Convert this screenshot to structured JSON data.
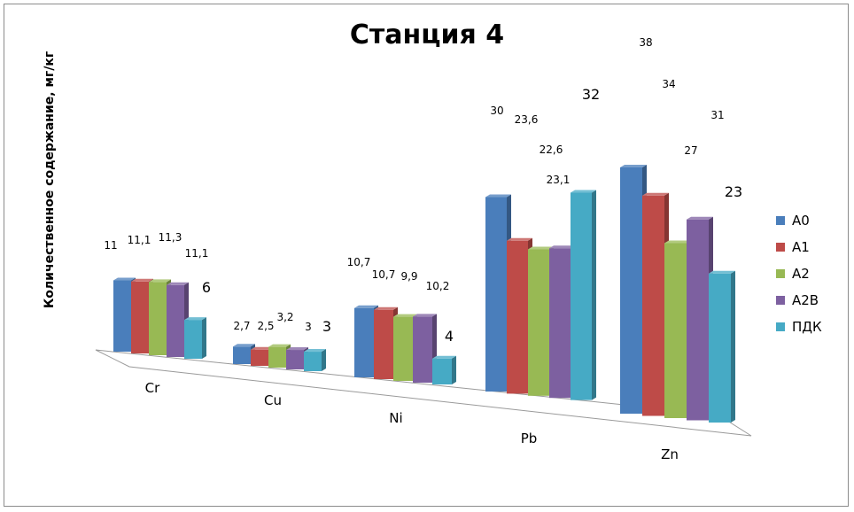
{
  "chart_data": {
    "type": "bar",
    "title": "Станция 4",
    "ylabel": "Количественное содержание, мг/кг",
    "xlabel": "",
    "categories": [
      "Cr",
      "Cu",
      "Ni",
      "Pb",
      "Zn"
    ],
    "series": [
      {
        "name": "A0",
        "color": "#4A7EBB",
        "values": [
          11,
          2.7,
          10.7,
          30,
          38
        ],
        "labels": [
          "11",
          "2,7",
          "10,7",
          "30",
          "38"
        ]
      },
      {
        "name": "A1",
        "color": "#BE4B48",
        "values": [
          11.1,
          2.5,
          10.7,
          23.6,
          34
        ],
        "labels": [
          "11,1",
          "2,5",
          "10,7",
          "23,6",
          "34"
        ]
      },
      {
        "name": "A2",
        "color": "#98B954",
        "values": [
          11.3,
          3.2,
          9.9,
          22.6,
          27
        ],
        "labels": [
          "11,3",
          "3,2",
          "9,9",
          "22,6",
          "27"
        ]
      },
      {
        "name": "A2B",
        "color": "#7D60A0",
        "values": [
          11.1,
          3,
          10.2,
          23.1,
          31
        ],
        "labels": [
          "11,1",
          "3",
          "10,2",
          "23,1",
          "31"
        ]
      },
      {
        "name": "ПДК",
        "color": "#46AAC5",
        "values": [
          6,
          3,
          4,
          32,
          23
        ],
        "labels": [
          "6",
          "3",
          "4",
          "32",
          "23"
        ]
      }
    ],
    "ylim": [
      0,
      38
    ],
    "grid": false,
    "legend_position": "right",
    "view": "3d-perspective"
  }
}
